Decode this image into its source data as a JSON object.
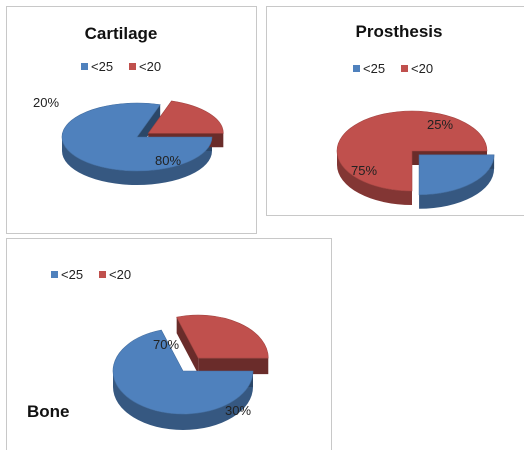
{
  "chart_data": [
    {
      "type": "pie",
      "title": "Cartilage",
      "legend": {
        "placement": "top",
        "entries": [
          "<25",
          "<20"
        ]
      },
      "categories": [
        "<25",
        "<20"
      ],
      "values": [
        80,
        20
      ],
      "labels": [
        "80%",
        "20%"
      ],
      "colors": [
        "#4F81BD",
        "#C0504D"
      ],
      "exploded": [
        false,
        true
      ]
    },
    {
      "type": "pie",
      "title": "Prosthesis",
      "legend": {
        "placement": "top",
        "entries": [
          "<25",
          "<20"
        ]
      },
      "categories": [
        "<25",
        "<20"
      ],
      "values": [
        25,
        75
      ],
      "labels": [
        "25%",
        "75%"
      ],
      "colors": [
        "#4F81BD",
        "#C0504D"
      ],
      "exploded": [
        true,
        false
      ]
    },
    {
      "type": "pie",
      "title": "Bone",
      "legend": {
        "placement": "top-left",
        "entries": [
          "<25",
          "<20"
        ]
      },
      "categories": [
        "<25",
        "<20"
      ],
      "values": [
        70,
        30
      ],
      "labels": [
        "70%",
        "30%"
      ],
      "colors": [
        "#4F81BD",
        "#C0504D"
      ],
      "exploded": [
        false,
        true
      ]
    }
  ]
}
